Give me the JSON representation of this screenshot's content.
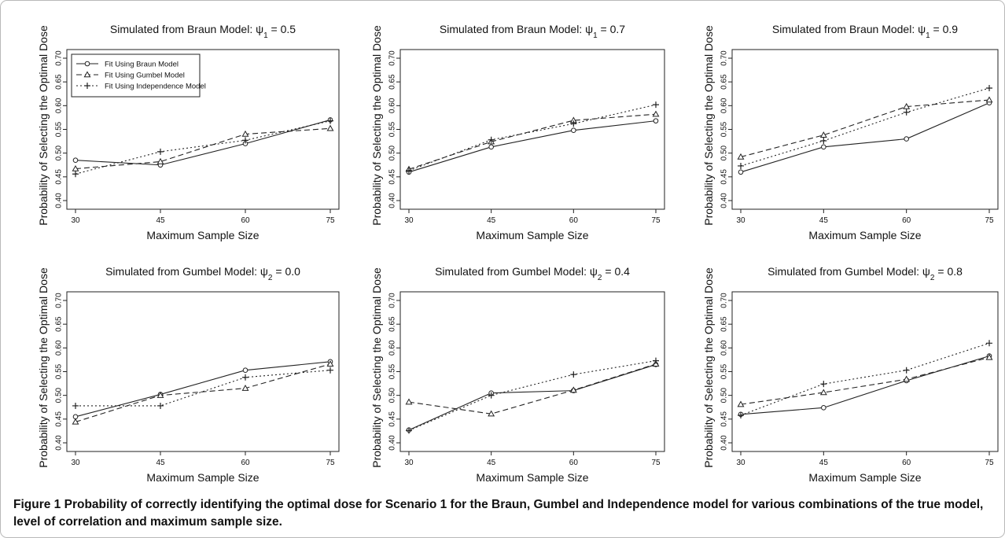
{
  "caption": {
    "label": "Figure 1",
    "text": "Probability of correctly identifying the optimal dose for Scenario 1 for the Braun, Gumbel and Independence model for various combinations of the true model, level of correlation and maximum sample size."
  },
  "legend": [
    {
      "label": "Fit Using Braun Model",
      "marker": "circle",
      "dash": "solid"
    },
    {
      "label": "Fit Using Gumbel Model",
      "marker": "triangle",
      "dash": "dashed"
    },
    {
      "label": "Fit Using Independence Model",
      "marker": "plus",
      "dash": "dotted"
    }
  ],
  "chart_data": [
    {
      "type": "line",
      "title": "Simulated from Braun Model: ψ₁ = 0.5",
      "title_parts": {
        "prefix": "Simulated from Braun Model: ",
        "sym": "ψ",
        "sub": "1",
        "suffix": " = 0.5"
      },
      "xlabel": "Maximum Sample Size",
      "ylabel": "Probability of Selecting the Optimal Dose",
      "x": [
        30,
        45,
        60,
        75
      ],
      "ylim": [
        0.4,
        0.7
      ],
      "yticks": [
        "0.40",
        "0.45",
        "0.50",
        "0.55",
        "0.60",
        "0.65",
        "0.70"
      ],
      "legend": "top-left",
      "series": [
        {
          "name": "Fit Using Braun Model",
          "values": [
            0.485,
            0.475,
            0.52,
            0.57
          ]
        },
        {
          "name": "Fit Using Gumbel Model",
          "values": [
            0.467,
            0.482,
            0.54,
            0.552
          ]
        },
        {
          "name": "Fit Using Independence Model",
          "values": [
            0.456,
            0.503,
            0.527,
            0.568
          ]
        }
      ]
    },
    {
      "type": "line",
      "title": "Simulated from Braun Model: ψ₁ = 0.7",
      "title_parts": {
        "prefix": "Simulated from Braun Model: ",
        "sym": "ψ",
        "sub": "1",
        "suffix": " = 0.7"
      },
      "xlabel": "Maximum Sample Size",
      "ylabel": "Probability of Selecting the Optimal Dose",
      "x": [
        30,
        45,
        60,
        75
      ],
      "ylim": [
        0.4,
        0.7
      ],
      "yticks": [
        "0.40",
        "0.45",
        "0.50",
        "0.55",
        "0.60",
        "0.65",
        "0.70"
      ],
      "series": [
        {
          "name": "Fit Using Braun Model",
          "values": [
            0.46,
            0.513,
            0.548,
            0.568
          ]
        },
        {
          "name": "Fit Using Gumbel Model",
          "values": [
            0.466,
            0.524,
            0.569,
            0.582
          ]
        },
        {
          "name": "Fit Using Independence Model",
          "values": [
            0.463,
            0.528,
            0.562,
            0.602
          ]
        }
      ]
    },
    {
      "type": "line",
      "title": "Simulated from Braun Model: ψ₁ = 0.9",
      "title_parts": {
        "prefix": "Simulated from Braun Model: ",
        "sym": "ψ",
        "sub": "1",
        "suffix": " = 0.9"
      },
      "xlabel": "Maximum Sample Size",
      "ylabel": "Probability of Selecting the Optimal Dose",
      "x": [
        30,
        45,
        60,
        75
      ],
      "ylim": [
        0.4,
        0.7
      ],
      "yticks": [
        "0.40",
        "0.45",
        "0.50",
        "0.55",
        "0.60",
        "0.65",
        "0.70"
      ],
      "series": [
        {
          "name": "Fit Using Braun Model",
          "values": [
            0.46,
            0.513,
            0.53,
            0.606
          ]
        },
        {
          "name": "Fit Using Gumbel Model",
          "values": [
            0.492,
            0.538,
            0.598,
            0.612
          ]
        },
        {
          "name": "Fit Using Independence Model",
          "values": [
            0.473,
            0.526,
            0.586,
            0.637
          ]
        }
      ]
    },
    {
      "type": "line",
      "title": "Simulated from Gumbel Model: ψ₂ = 0.0",
      "title_parts": {
        "prefix": "Simulated from Gumbel Model: ",
        "sym": "ψ",
        "sub": "2",
        "suffix": " = 0.0"
      },
      "xlabel": "Maximum Sample Size",
      "ylabel": "Probability of Selecting the Optimal Dose",
      "x": [
        30,
        45,
        60,
        75
      ],
      "ylim": [
        0.4,
        0.7
      ],
      "yticks": [
        "0.40",
        "0.45",
        "0.50",
        "0.55",
        "0.60",
        "0.65",
        "0.70"
      ],
      "series": [
        {
          "name": "Fit Using Braun Model",
          "values": [
            0.455,
            0.502,
            0.553,
            0.571
          ]
        },
        {
          "name": "Fit Using Gumbel Model",
          "values": [
            0.444,
            0.5,
            0.515,
            0.566
          ]
        },
        {
          "name": "Fit Using Independence Model",
          "values": [
            0.478,
            0.478,
            0.538,
            0.553
          ]
        }
      ]
    },
    {
      "type": "line",
      "title": "Simulated from Gumbel Model: ψ₂ = 0.4",
      "title_parts": {
        "prefix": "Simulated from Gumbel Model: ",
        "sym": "ψ",
        "sub": "2",
        "suffix": " = 0.4"
      },
      "xlabel": "Maximum Sample Size",
      "ylabel": "Probability of Selecting the Optimal Dose",
      "x": [
        30,
        45,
        60,
        75
      ],
      "ylim": [
        0.4,
        0.7
      ],
      "yticks": [
        "0.40",
        "0.45",
        "0.50",
        "0.55",
        "0.60",
        "0.65",
        "0.70"
      ],
      "series": [
        {
          "name": "Fit Using Braun Model",
          "values": [
            0.427,
            0.505,
            0.51,
            0.565
          ]
        },
        {
          "name": "Fit Using Gumbel Model",
          "values": [
            0.486,
            0.461,
            0.511,
            0.566
          ]
        },
        {
          "name": "Fit Using Independence Model",
          "values": [
            0.426,
            0.5,
            0.544,
            0.573
          ]
        }
      ]
    },
    {
      "type": "line",
      "title": "Simulated from Gumbel Model: ψ₂ = 0.8",
      "title_parts": {
        "prefix": "Simulated from Gumbel Model: ",
        "sym": "ψ",
        "sub": "2",
        "suffix": " = 0.8"
      },
      "xlabel": "Maximum Sample Size",
      "ylabel": "Probability of Selecting the Optimal Dose",
      "x": [
        30,
        45,
        60,
        75
      ],
      "ylim": [
        0.4,
        0.7
      ],
      "yticks": [
        "0.40",
        "0.45",
        "0.50",
        "0.55",
        "0.60",
        "0.65",
        "0.70"
      ],
      "series": [
        {
          "name": "Fit Using Braun Model",
          "values": [
            0.46,
            0.474,
            0.531,
            0.583
          ]
        },
        {
          "name": "Fit Using Gumbel Model",
          "values": [
            0.481,
            0.506,
            0.534,
            0.58
          ]
        },
        {
          "name": "Fit Using Independence Model",
          "values": [
            0.458,
            0.524,
            0.553,
            0.61
          ]
        }
      ]
    }
  ]
}
